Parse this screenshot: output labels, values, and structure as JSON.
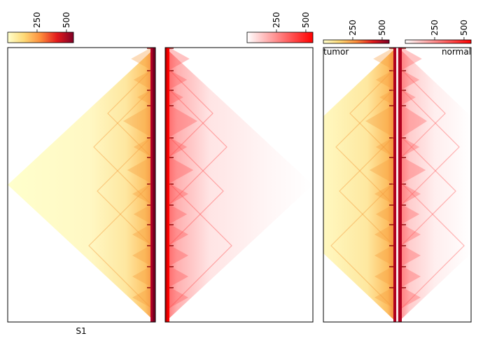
{
  "chart_data": [
    {
      "type": "heatmap",
      "title": "",
      "xlabel": "S1",
      "ylabel": "",
      "orientation": "triangle-left",
      "colormap": "YlOrRd",
      "colorbar": {
        "ticks": [
          250,
          500
        ],
        "tick_labels": [
          "250",
          "500"
        ],
        "range": [
          0,
          560
        ]
      },
      "colors": {
        "low": "#ffffcc",
        "mid": "#fd8d3c",
        "high": "#800026"
      }
    },
    {
      "type": "heatmap",
      "title": "",
      "xlabel": "",
      "ylabel": "",
      "orientation": "triangle-right",
      "colormap": "Reds",
      "colorbar": {
        "ticks": [
          250,
          500
        ],
        "tick_labels": [
          "250",
          "500"
        ],
        "range": [
          0,
          560
        ]
      },
      "colors": {
        "low": "#ffffff",
        "mid": "#ff7070",
        "high": "#ff0000"
      }
    },
    {
      "type": "heatmap",
      "title": "",
      "xlabel": "",
      "ylabel": "",
      "orientation": "split",
      "series": [
        {
          "name": "tumor",
          "side": "left",
          "colormap": "YlOrRd",
          "colorbar": {
            "ticks": [
              250,
              500
            ],
            "tick_labels": [
              "250",
              "500"
            ],
            "range": [
              0,
              560
            ]
          }
        },
        {
          "name": "normal",
          "side": "right",
          "colormap": "Reds",
          "colorbar": {
            "ticks": [
              250,
              500
            ],
            "tick_labels": [
              "250",
              "500"
            ],
            "range": [
              0,
              560
            ]
          }
        }
      ]
    }
  ]
}
